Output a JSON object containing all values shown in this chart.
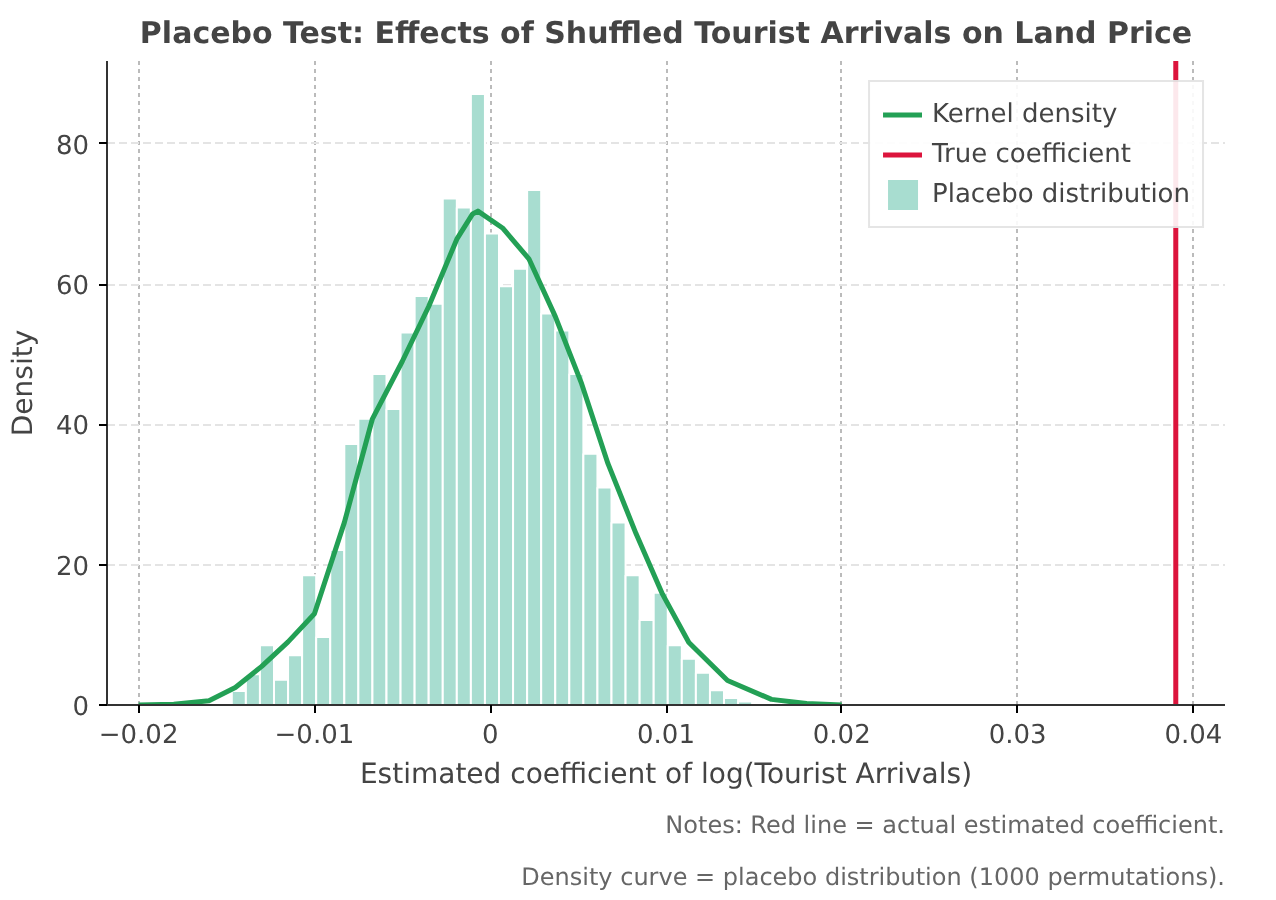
{
  "chart_data": {
    "type": "histogram",
    "title": "Placebo Test: Effects of Shuffled Tourist Arrivals on Land Price",
    "xlabel": "Estimated coefficient of log(Tourist Arrivals)",
    "ylabel": "Density",
    "bins": [
      -0.0147,
      -0.0139,
      -0.0131,
      -0.0123,
      -0.0115,
      -0.0107,
      -0.0099,
      -0.0091,
      -0.0083,
      -0.0075,
      -0.0067,
      -0.0059,
      -0.0051,
      -0.0043,
      -0.0035,
      -0.0027,
      -0.0019,
      -0.0011,
      -0.0003,
      0.0005,
      0.0013,
      0.0021,
      0.0029,
      0.0037,
      0.0045,
      0.0053,
      0.0061,
      0.0069,
      0.0077,
      0.0085,
      0.0093,
      0.0101,
      0.0109,
      0.0117,
      0.0125,
      0.0133,
      0.0141,
      0.0149
    ],
    "series": [
      {
        "name": "Kernel density",
        "type": "line",
        "color": "#23a055",
        "x": [
          -0.02,
          -0.018,
          -0.016,
          -0.0145,
          -0.013,
          -0.0115,
          -0.01,
          -0.0083,
          -0.0067,
          -0.005,
          -0.0035,
          -0.0019,
          -0.001,
          -0.0007,
          0.0007,
          0.0022,
          0.0037,
          0.0052,
          0.0067,
          0.0083,
          0.0098,
          0.0113,
          0.0135,
          0.016,
          0.018,
          0.02
        ],
        "values": [
          0,
          0.1,
          0.6,
          2.5,
          5.5,
          9,
          13,
          26,
          40.8,
          49,
          56.8,
          66.4,
          70,
          70.4,
          68,
          63.6,
          55.4,
          45.8,
          34.4,
          24.4,
          15.8,
          8.9,
          3.5,
          0.8,
          0.2,
          0
        ]
      },
      {
        "name": "Placebo distribution",
        "color": "#a8ddd0",
        "values": [
          2,
          4.4,
          8.5,
          3.6,
          7.1,
          18.5,
          9.7,
          22.1,
          37.2,
          40.8,
          47.2,
          42.2,
          53.1,
          58.3,
          57.2,
          72.2,
          70.9,
          87.1,
          67.2,
          59.7,
          62.2,
          73.4,
          55.8,
          53.4,
          47.2,
          35.8,
          31,
          26,
          18.5,
          12.1,
          16,
          8.5,
          6.6,
          4.6,
          2.1,
          1,
          0.5
        ]
      }
    ],
    "ref_lines": [
      {
        "axis": "x",
        "value": 0.039,
        "label": "True coefficient",
        "color": "#dc143c"
      }
    ],
    "xlim": [
      -0.0218,
      0.0418
    ],
    "ylim": [
      0,
      91.8
    ],
    "xticks": [
      {
        "value": -0.02,
        "label": "−0.02"
      },
      {
        "value": -0.01,
        "label": "−0.01"
      },
      0,
      0.01,
      0.02,
      0.03,
      0.04
    ],
    "yticks": [
      0,
      20,
      40,
      60,
      80
    ],
    "grid": true,
    "legend": "top right",
    "annotations": [
      "Notes: Red line = actual estimated coefficient.",
      "Density curve = placebo distribution (1000 permutations)."
    ]
  }
}
